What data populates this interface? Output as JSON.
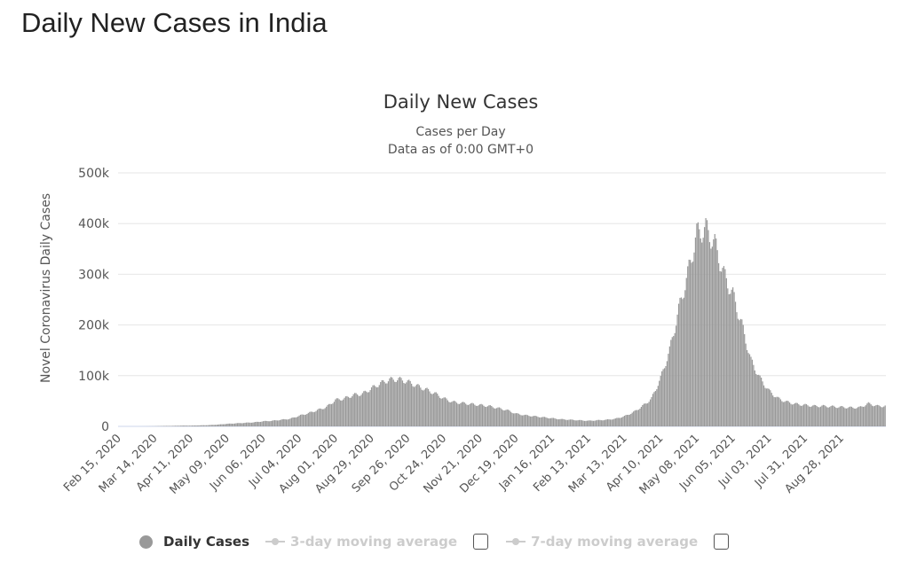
{
  "page_title": "Daily New Cases in India",
  "chart_data": {
    "type": "bar",
    "title": "Daily New Cases",
    "subtitle1": "Cases per Day",
    "subtitle2": "Data as of 0:00 GMT+0",
    "ylabel": "Novel Coronavirus Daily Cases",
    "ylim": [
      0,
      500000
    ],
    "yticks": [
      "0",
      "100k",
      "200k",
      "300k",
      "400k",
      "500k"
    ],
    "xticks": [
      "Feb 15, 2020",
      "Mar 14, 2020",
      "Apr 11, 2020",
      "May 09, 2020",
      "Jun 06, 2020",
      "Jul 04, 2020",
      "Aug 01, 2020",
      "Aug 29, 2020",
      "Sep 26, 2020",
      "Oct 24, 2020",
      "Nov 21, 2020",
      "Dec 19, 2020",
      "Jan 16, 2021",
      "Feb 13, 2021",
      "Mar 13, 2021",
      "Apr 10, 2021",
      "May 08, 2021",
      "Jun 05, 2021",
      "Jul 03, 2021",
      "Jul 31, 2021",
      "Aug 28, 2021"
    ],
    "start_date": "Feb 15, 2020",
    "weekly_values_k": [
      0,
      0,
      0,
      0.1,
      0.3,
      0.8,
      1,
      1.5,
      1.5,
      2,
      2.5,
      3.5,
      5,
      6,
      7,
      8,
      10,
      11,
      13,
      15,
      21,
      26,
      32,
      38,
      52,
      55,
      62,
      64,
      75,
      85,
      92,
      93,
      88,
      80,
      73,
      65,
      55,
      48,
      46,
      44,
      42,
      40,
      36,
      32,
      25,
      22,
      20,
      18,
      16,
      14,
      13,
      12,
      11,
      12,
      13,
      15,
      20,
      28,
      40,
      55,
      95,
      150,
      230,
      300,
      380,
      390,
      360,
      300,
      260,
      200,
      130,
      95,
      70,
      55,
      48,
      44,
      42,
      40,
      40,
      39,
      38,
      37,
      37,
      45,
      40
    ],
    "color": "#999999",
    "legend": {
      "daily": "Daily Cases",
      "ma3": "3-day moving average",
      "ma7": "7-day moving average"
    }
  }
}
